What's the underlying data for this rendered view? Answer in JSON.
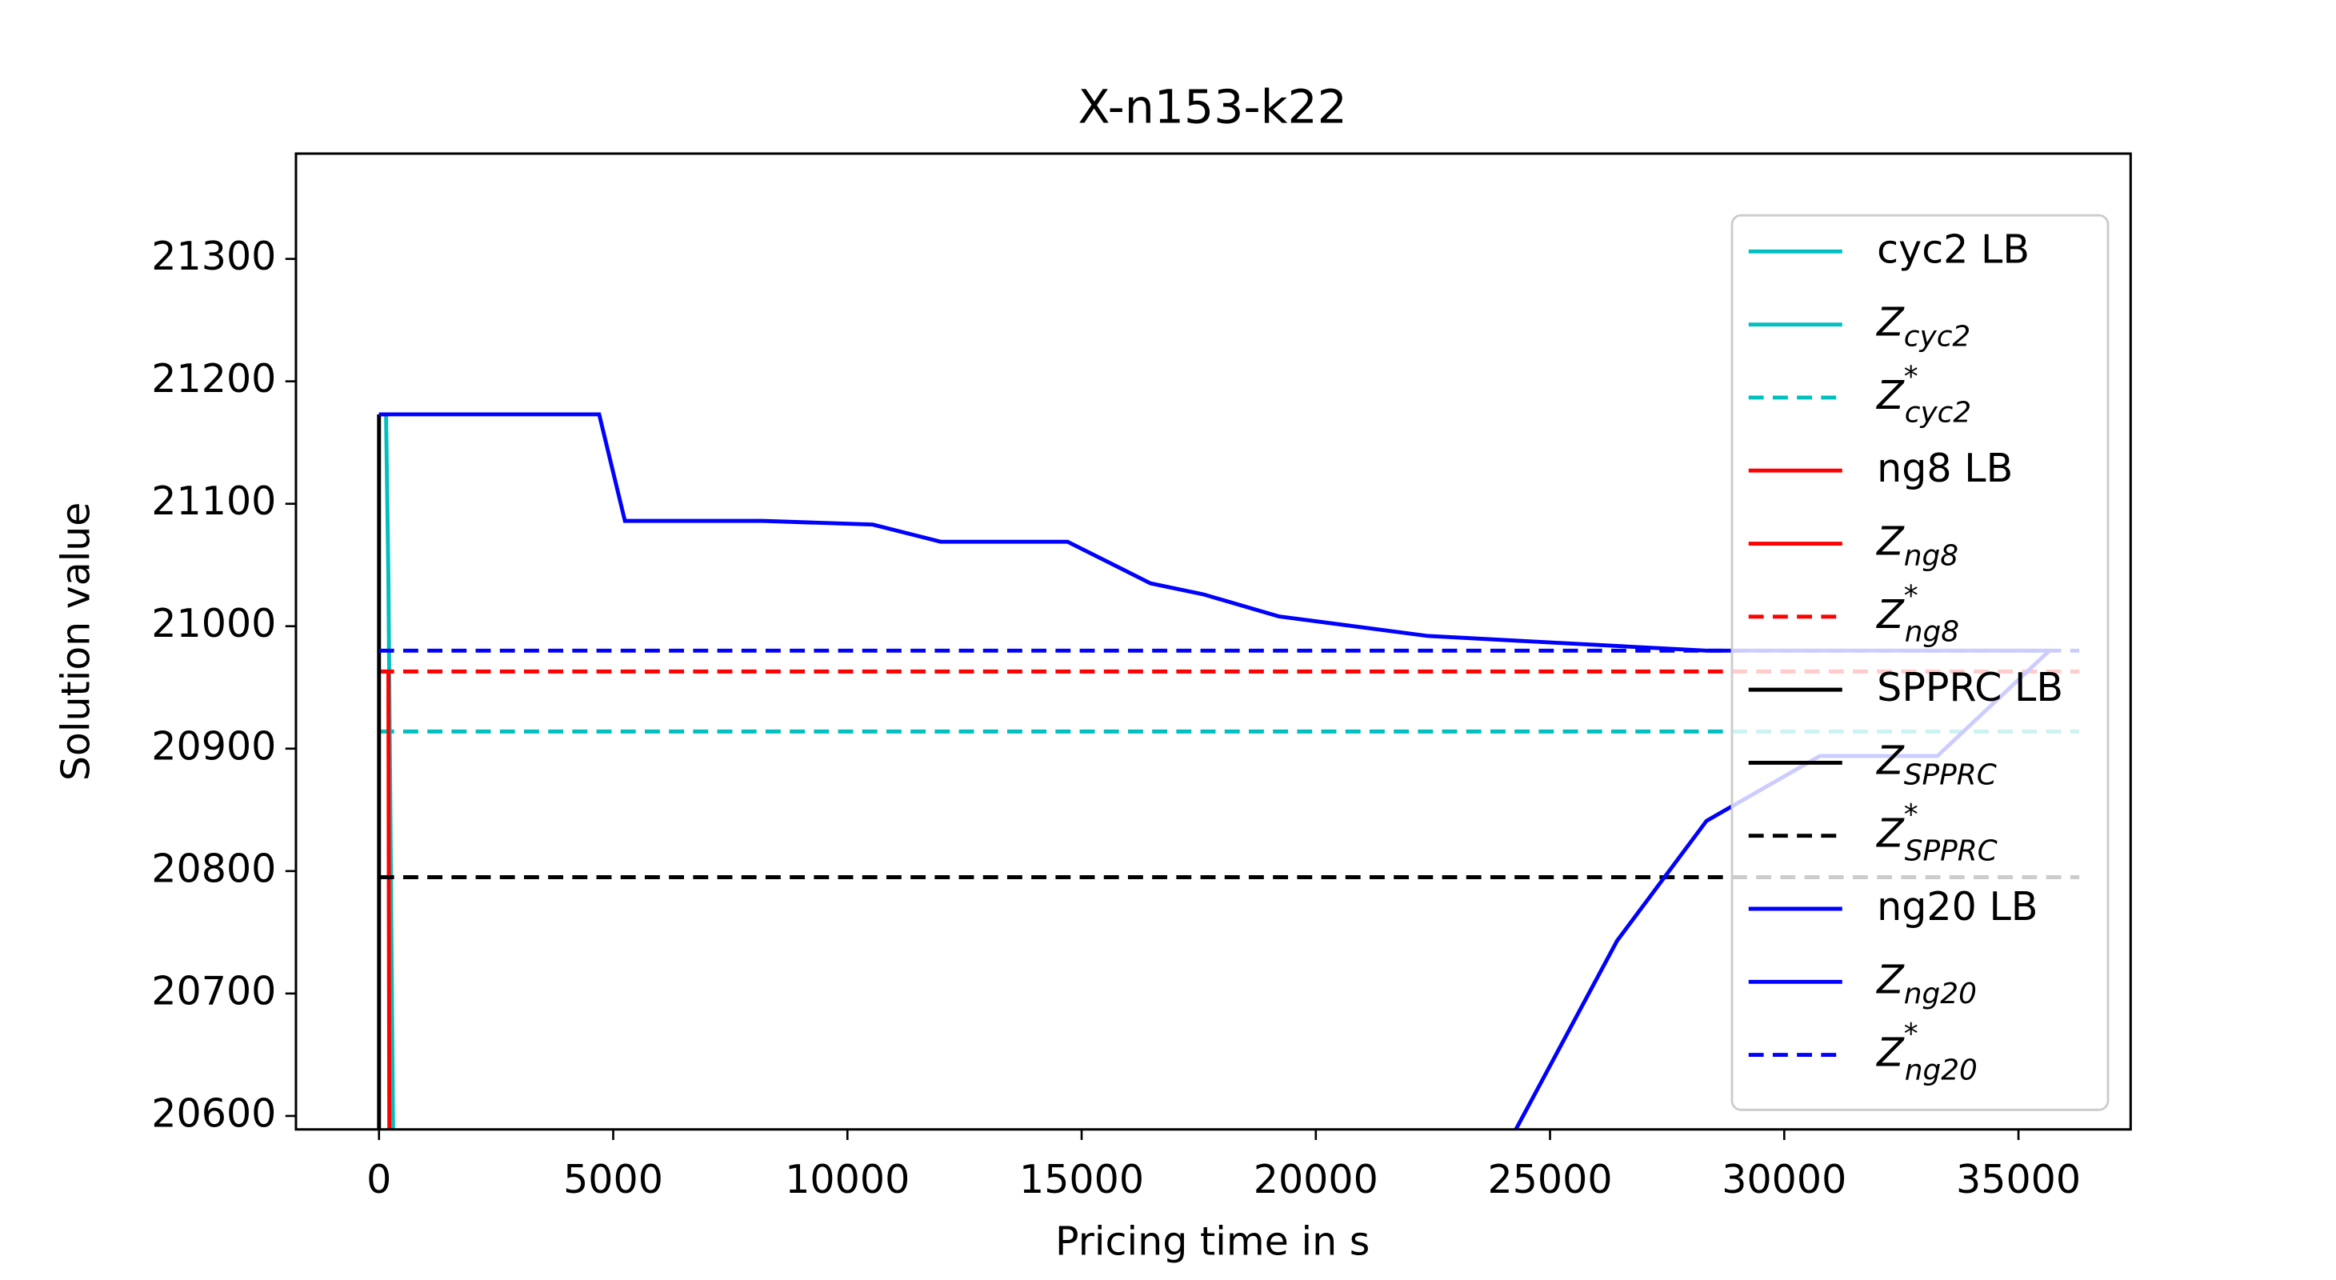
{
  "chart_data": {
    "type": "line",
    "title": "X-n153-k22",
    "x_label": "Pricing time in s",
    "y_label": "Solution value",
    "xlim": [
      -1773,
      37395
    ],
    "ylim": [
      20589,
      21386
    ],
    "xticks": [
      0,
      5000,
      10000,
      15000,
      20000,
      25000,
      30000,
      35000
    ],
    "yticks": [
      20600,
      20700,
      20800,
      20900,
      21000,
      21100,
      21200,
      21300
    ],
    "legend": "upper right",
    "series": [
      {
        "name": "cyc2 LB",
        "color": "#00bfbf",
        "dash": false,
        "x": [
          300,
          200,
          150
        ],
        "values": [
          20589,
          21040,
          21173
        ]
      },
      {
        "name": "Z",
        "subscript": "cyc2",
        "color": "#00bfbf",
        "dash": false,
        "x": [
          0,
          150
        ],
        "values": [
          21173,
          21173
        ]
      },
      {
        "name": "Z",
        "subscript": "cyc2",
        "superscript": "*",
        "color": "#00bfbf",
        "dash": true,
        "x": [
          0,
          36300
        ],
        "values": [
          20914,
          20914
        ]
      },
      {
        "name": "ng8 LB",
        "color": "#ff0000",
        "dash": false,
        "x": [
          220,
          200
        ],
        "values": [
          20589,
          20963
        ]
      },
      {
        "name": "Z",
        "subscript": "ng8",
        "color": "#ff0000",
        "dash": false,
        "x": [
          0,
          200
        ],
        "values": [
          21173,
          21173
        ]
      },
      {
        "name": "Z",
        "subscript": "ng8",
        "superscript": "*",
        "color": "#ff0000",
        "dash": true,
        "x": [
          0,
          36300
        ],
        "values": [
          20963,
          20963
        ]
      },
      {
        "name": "SPPRC LB",
        "color": "#000000",
        "dash": false,
        "x": [
          0,
          0
        ],
        "values": [
          20589,
          21173
        ]
      },
      {
        "name": "Z",
        "subscript": "SPPRC",
        "color": "#000000",
        "dash": false,
        "x": [
          0,
          50
        ],
        "values": [
          21173,
          21173
        ]
      },
      {
        "name": "Z",
        "subscript": "SPPRC",
        "superscript": "*",
        "color": "#000000",
        "dash": true,
        "x": [
          0,
          36300
        ],
        "values": [
          20795,
          20795
        ]
      },
      {
        "name": "ng20 LB",
        "color": "#0000ff",
        "dash": false,
        "x": [
          24270,
          26430,
          28340,
          30760,
          33270,
          35660
        ],
        "values": [
          20589,
          20743,
          20841,
          20894,
          20894,
          20980
        ]
      },
      {
        "name": "Z",
        "subscript": "ng20",
        "color": "#0000ff",
        "dash": false,
        "x": [
          0,
          4700,
          5250,
          8190,
          10540,
          11990,
          14700,
          16470,
          17600,
          19210,
          22400,
          28340,
          35660
        ],
        "values": [
          21173,
          21173,
          21086,
          21086,
          21083,
          21069,
          21069,
          21035,
          21026,
          21008,
          20992,
          20980,
          20980
        ]
      },
      {
        "name": "Z",
        "subscript": "ng20",
        "superscript": "*",
        "color": "#0000ff",
        "dash": true,
        "x": [
          0,
          36300
        ],
        "values": [
          20980,
          20980
        ]
      }
    ]
  }
}
